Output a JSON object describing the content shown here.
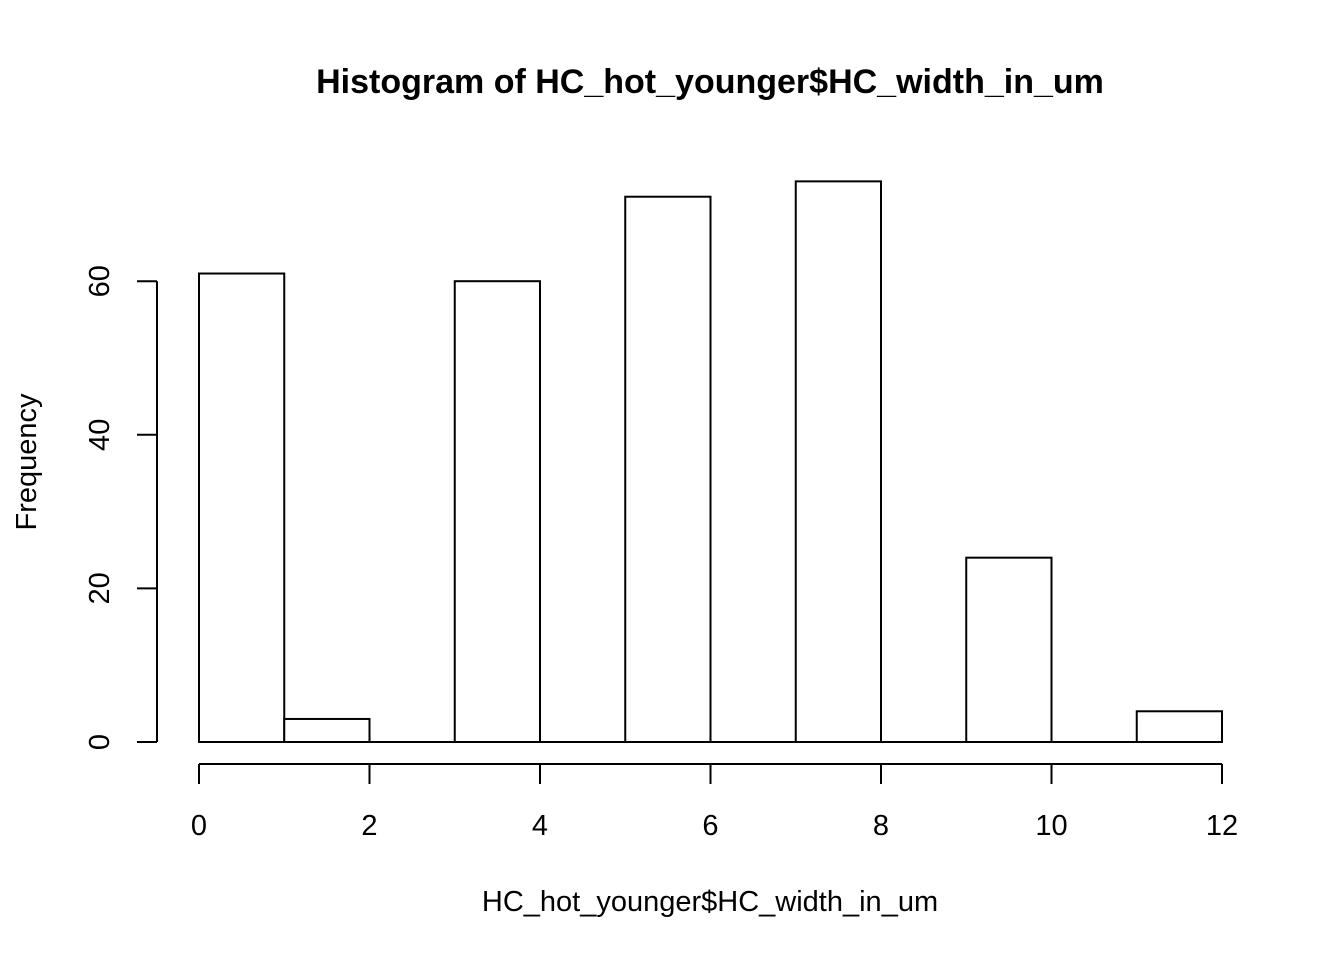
{
  "chart_data": {
    "type": "bar",
    "histogram": true,
    "title": "Histogram of HC_hot_younger$HC_width_in_um",
    "xlabel": "HC_hot_younger$HC_width_in_um",
    "ylabel": "Frequency",
    "bins": [
      {
        "from": 0,
        "to": 1,
        "count": 61
      },
      {
        "from": 1,
        "to": 2,
        "count": 3
      },
      {
        "from": 2,
        "to": 3,
        "count": 0
      },
      {
        "from": 3,
        "to": 4,
        "count": 60
      },
      {
        "from": 4,
        "to": 5,
        "count": 0
      },
      {
        "from": 5,
        "to": 6,
        "count": 71
      },
      {
        "from": 6,
        "to": 7,
        "count": 0
      },
      {
        "from": 7,
        "to": 8,
        "count": 73
      },
      {
        "from": 8,
        "to": 9,
        "count": 0
      },
      {
        "from": 9,
        "to": 10,
        "count": 24
      },
      {
        "from": 10,
        "to": 11,
        "count": 0
      },
      {
        "from": 11,
        "to": 12,
        "count": 4
      }
    ],
    "xlim": [
      0,
      12
    ],
    "ylim": [
      0,
      73
    ],
    "xticks": [
      0,
      2,
      4,
      6,
      8,
      10,
      12
    ],
    "yticks": [
      0,
      20,
      40,
      60
    ],
    "grid": false,
    "colors": {
      "bar_fill": "#ffffff",
      "bar_stroke": "#000000",
      "text": "#000000"
    }
  }
}
